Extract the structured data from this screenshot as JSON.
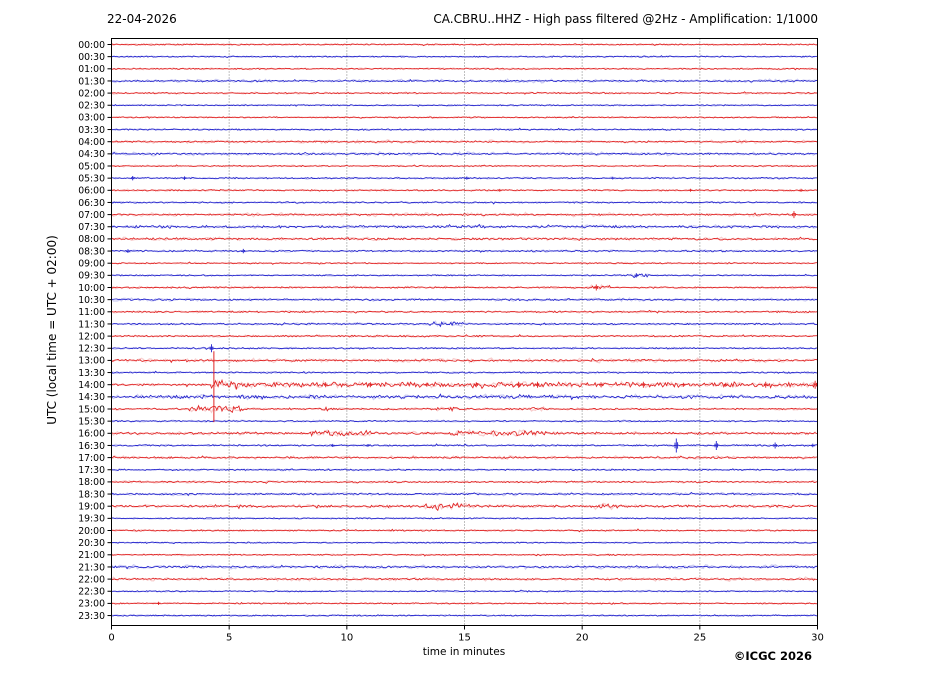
{
  "header": {
    "date": "22-04-2026",
    "title": "CA.CBRU..HHZ - High pass filtered @2Hz - Amplification: 1/1000"
  },
  "axes": {
    "y_title": "UTC (local time = UTC + 02:00)",
    "x_title": "time in minutes"
  },
  "footer": {
    "copyright": "©ICGC 2026"
  },
  "chart_data": {
    "type": "line",
    "subtype": "helicorder-dayplot",
    "title": "CA.CBRU..HHZ - High pass filtered @2Hz - Amplification: 1/1000",
    "date": "22-04-2026",
    "xlabel": "time in minutes",
    "ylabel": "UTC (local time = UTC + 02:00)",
    "x_range": [
      0,
      30
    ],
    "x_ticks": [
      0,
      5,
      10,
      15,
      20,
      25,
      30
    ],
    "grid_minutes": [
      5,
      10,
      15,
      20,
      25
    ],
    "legend": "none",
    "colors": {
      "red": "#e02222",
      "blue": "#2222cc",
      "grid": "#808080",
      "axis": "#000000"
    },
    "clip_line": {
      "minute": 4.35,
      "from_row": 25,
      "to_row": 31,
      "color": "#e02222",
      "note": "clipped spike of 14:00 event crossing rows 12:30-15:30"
    },
    "rows": [
      {
        "label": "00:00",
        "color": "red",
        "amp": 0.7,
        "fuzz": 0,
        "segments": [],
        "spikes": []
      },
      {
        "label": "00:30",
        "color": "blue",
        "amp": 0.7,
        "fuzz": 0,
        "segments": [],
        "spikes": []
      },
      {
        "label": "01:00",
        "color": "red",
        "amp": 0.7,
        "fuzz": 0,
        "segments": [],
        "spikes": []
      },
      {
        "label": "01:30",
        "color": "blue",
        "amp": 0.8,
        "fuzz": 2.0,
        "segments": [],
        "spikes": []
      },
      {
        "label": "02:00",
        "color": "red",
        "amp": 0.8,
        "fuzz": 1.2,
        "segments": [],
        "spikes": []
      },
      {
        "label": "02:30",
        "color": "blue",
        "amp": 0.7,
        "fuzz": 0,
        "segments": [],
        "spikes": []
      },
      {
        "label": "03:00",
        "color": "red",
        "amp": 0.7,
        "fuzz": 0,
        "segments": [],
        "spikes": []
      },
      {
        "label": "03:30",
        "color": "blue",
        "amp": 0.8,
        "fuzz": 0,
        "segments": [],
        "spikes": []
      },
      {
        "label": "04:00",
        "color": "red",
        "amp": 0.8,
        "fuzz": 2.0,
        "segments": [],
        "spikes": []
      },
      {
        "label": "04:30",
        "color": "blue",
        "amp": 0.9,
        "fuzz": 2.2,
        "segments": [],
        "spikes": []
      },
      {
        "label": "05:00",
        "color": "red",
        "amp": 0.7,
        "fuzz": 0,
        "segments": [],
        "spikes": []
      },
      {
        "label": "05:30",
        "color": "blue",
        "amp": 0.8,
        "fuzz": 0,
        "segments": [],
        "spikes": [
          [
            0.9,
            2.2
          ],
          [
            3.1,
            1.8
          ],
          [
            15.1,
            1.6
          ],
          [
            21.3,
            1.4
          ]
        ]
      },
      {
        "label": "06:00",
        "color": "red",
        "amp": 0.8,
        "fuzz": 0,
        "segments": [],
        "spikes": [
          [
            16.5,
            1.4
          ],
          [
            24.6,
            1.5
          ],
          [
            29.3,
            1.6
          ]
        ]
      },
      {
        "label": "06:30",
        "color": "blue",
        "amp": 0.8,
        "fuzz": 0,
        "segments": [],
        "spikes": []
      },
      {
        "label": "07:00",
        "color": "red",
        "amp": 0.9,
        "fuzz": 2.2,
        "segments": [],
        "spikes": [
          [
            29.0,
            3.5
          ]
        ]
      },
      {
        "label": "07:30",
        "color": "blue",
        "amp": 1.3,
        "fuzz": 0,
        "segments": [],
        "spikes": []
      },
      {
        "label": "08:00",
        "color": "red",
        "amp": 1.2,
        "fuzz": 1.3,
        "segments": [],
        "spikes": []
      },
      {
        "label": "08:30",
        "color": "blue",
        "amp": 0.9,
        "fuzz": 0,
        "segments": [],
        "spikes": [
          [
            0.7,
            1.8
          ],
          [
            5.6,
            2.2
          ]
        ]
      },
      {
        "label": "09:00",
        "color": "red",
        "amp": 0.7,
        "fuzz": 0,
        "segments": [],
        "spikes": []
      },
      {
        "label": "09:30",
        "color": "blue",
        "amp": 0.7,
        "fuzz": 0,
        "segments": [
          [
            21.9,
            22.8,
            1.2
          ]
        ],
        "spikes": [
          [
            22.3,
            2.2
          ]
        ]
      },
      {
        "label": "10:00",
        "color": "red",
        "amp": 0.8,
        "fuzz": 1.6,
        "segments": [
          [
            20.2,
            21.2,
            1.5
          ]
        ],
        "spikes": [
          [
            20.6,
            3.0
          ]
        ]
      },
      {
        "label": "10:30",
        "color": "blue",
        "amp": 0.9,
        "fuzz": 1.8,
        "segments": [],
        "spikes": []
      },
      {
        "label": "11:00",
        "color": "red",
        "amp": 0.9,
        "fuzz": 0,
        "segments": [],
        "spikes": []
      },
      {
        "label": "11:30",
        "color": "blue",
        "amp": 0.9,
        "fuzz": 0,
        "segments": [
          [
            13.5,
            15.0,
            1.8
          ]
        ],
        "spikes": []
      },
      {
        "label": "12:00",
        "color": "red",
        "amp": 0.9,
        "fuzz": 0,
        "segments": [],
        "spikes": []
      },
      {
        "label": "12:30",
        "color": "blue",
        "amp": 0.8,
        "fuzz": 0,
        "segments": [],
        "spikes": [
          [
            4.25,
            4.0
          ]
        ]
      },
      {
        "label": "13:00",
        "color": "red",
        "amp": 1.1,
        "fuzz": 2.4,
        "segments": [],
        "spikes": []
      },
      {
        "label": "13:30",
        "color": "blue",
        "amp": 0.8,
        "fuzz": 0,
        "segments": [],
        "spikes": []
      },
      {
        "label": "14:00",
        "color": "red",
        "amp": 1.1,
        "fuzz": 0,
        "segments": [
          [
            4.2,
            5.4,
            4.5
          ],
          [
            5.4,
            30,
            1.7
          ]
        ],
        "spikes": [
          [
            9.1,
            2.5
          ],
          [
            11.0,
            2.5
          ],
          [
            13.4,
            2.0
          ],
          [
            15.5,
            2.5
          ],
          [
            17.3,
            3.0
          ],
          [
            18.1,
            3.0
          ],
          [
            20.8,
            2.5
          ],
          [
            22.6,
            3.0
          ],
          [
            24.3,
            2.0
          ],
          [
            26.1,
            2.0
          ],
          [
            27.8,
            3.0
          ],
          [
            29.9,
            4.0
          ]
        ]
      },
      {
        "label": "14:30",
        "color": "blue",
        "amp": 1.8,
        "fuzz": 0,
        "segments": [],
        "spikes": []
      },
      {
        "label": "15:00",
        "color": "red",
        "amp": 0.9,
        "fuzz": 0,
        "segments": [
          [
            3.3,
            5.6,
            2.8
          ],
          [
            8.8,
            9.7,
            1.4
          ],
          [
            13.8,
            14.8,
            1.2
          ],
          [
            17.8,
            18.4,
            1.3
          ]
        ],
        "spikes": []
      },
      {
        "label": "15:30",
        "color": "blue",
        "amp": 0.8,
        "fuzz": 0,
        "segments": [],
        "spikes": []
      },
      {
        "label": "16:00",
        "color": "red",
        "amp": 1.3,
        "fuzz": 1.4,
        "segments": [
          [
            8.3,
            11.0,
            1.6
          ],
          [
            14.4,
            18.5,
            1.8
          ]
        ],
        "spikes": []
      },
      {
        "label": "16:30",
        "color": "blue",
        "amp": 0.9,
        "fuzz": 0,
        "segments": [],
        "spikes": [
          [
            9.4,
            1.6
          ],
          [
            10.9,
            1.4
          ],
          [
            24.0,
            7.0
          ],
          [
            25.7,
            4.5
          ],
          [
            28.2,
            3.0
          ],
          [
            29.8,
            1.8
          ]
        ]
      },
      {
        "label": "17:00",
        "color": "red",
        "amp": 1.0,
        "fuzz": 2.0,
        "segments": [],
        "spikes": []
      },
      {
        "label": "17:30",
        "color": "blue",
        "amp": 0.8,
        "fuzz": 0,
        "segments": [],
        "spikes": []
      },
      {
        "label": "18:00",
        "color": "red",
        "amp": 0.9,
        "fuzz": 1.2,
        "segments": [],
        "spikes": []
      },
      {
        "label": "18:30",
        "color": "blue",
        "amp": 0.9,
        "fuzz": 1.8,
        "segments": [],
        "spikes": []
      },
      {
        "label": "19:00",
        "color": "red",
        "amp": 1.3,
        "fuzz": 1.5,
        "segments": [
          [
            13.3,
            15.2,
            2.2
          ],
          [
            20.5,
            21.5,
            1.5
          ]
        ],
        "spikes": []
      },
      {
        "label": "19:30",
        "color": "blue",
        "amp": 0.7,
        "fuzz": 0,
        "segments": [],
        "spikes": []
      },
      {
        "label": "20:00",
        "color": "red",
        "amp": 0.8,
        "fuzz": 0,
        "segments": [],
        "spikes": []
      },
      {
        "label": "20:30",
        "color": "blue",
        "amp": 0.7,
        "fuzz": 0,
        "segments": [],
        "spikes": []
      },
      {
        "label": "21:00",
        "color": "red",
        "amp": 0.7,
        "fuzz": 0,
        "segments": [],
        "spikes": []
      },
      {
        "label": "21:30",
        "color": "blue",
        "amp": 1.0,
        "fuzz": 2.6,
        "segments": [],
        "spikes": []
      },
      {
        "label": "22:00",
        "color": "red",
        "amp": 0.9,
        "fuzz": 2.2,
        "segments": [],
        "spikes": []
      },
      {
        "label": "22:30",
        "color": "blue",
        "amp": 0.7,
        "fuzz": 0,
        "segments": [],
        "spikes": []
      },
      {
        "label": "23:00",
        "color": "red",
        "amp": 0.7,
        "fuzz": 0,
        "segments": [],
        "spikes": [
          [
            2.0,
            1.6
          ]
        ]
      },
      {
        "label": "23:30",
        "color": "blue",
        "amp": 0.7,
        "fuzz": 0,
        "segments": [],
        "spikes": []
      }
    ]
  }
}
